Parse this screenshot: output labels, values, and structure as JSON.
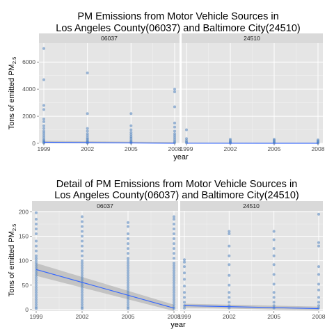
{
  "chart_data": [
    {
      "type": "scatter",
      "title_lines": [
        "PM Emissions from Motor Vehicle Sources in",
        "Los Angeles County(06037) and Baltimore City(24510)"
      ],
      "xlabel": "year",
      "ylabel_main": "Tons of emitted PM",
      "ylabel_sub": "2.5",
      "x_ticks": [
        1999,
        2002,
        2005,
        2008
      ],
      "y_ticks": [
        0,
        2000,
        4000,
        6000
      ],
      "xlim": [
        1999,
        2008
      ],
      "ylim": [
        0,
        7400
      ],
      "point_color": "#4f81bd",
      "trend_color": "#3366ff",
      "facets": [
        {
          "label": "06037",
          "points": {
            "1999": [
              7000,
              4700,
              2800,
              2500,
              1800,
              1600,
              1300,
              1100,
              900,
              750,
              600,
              450,
              300,
              200,
              120,
              60,
              20
            ],
            "2002": [
              5200,
              2200,
              1100,
              900,
              700,
              550,
              400,
              300,
              200,
              120,
              60,
              20
            ],
            "2005": [
              2200,
              1300,
              1000,
              800,
              650,
              500,
              380,
              250,
              150,
              80,
              20
            ],
            "2008": [
              4000,
              3800,
              2700,
              1500,
              1200,
              900,
              700,
              550,
              400,
              250,
              120,
              40
            ]
          },
          "trend": [
            [
              1999,
              80
            ],
            [
              2008,
              5
            ]
          ],
          "band": [
            [
              1999,
              180,
              -20
            ],
            [
              2008,
              90,
              -80
            ]
          ]
        },
        {
          "label": "24510",
          "points": {
            "1999": [
              1000,
              350,
              200,
              100,
              30
            ],
            "2002": [
              300,
              200,
              120,
              50,
              15
            ],
            "2005": [
              300,
              220,
              140,
              60,
              15
            ],
            "2008": [
              260,
              180,
              100,
              40,
              10
            ]
          },
          "trend": [
            [
              1999,
              10
            ],
            [
              2008,
              5
            ]
          ],
          "band": [
            [
              1999,
              60,
              -40
            ],
            [
              2008,
              50,
              -40
            ]
          ]
        }
      ]
    },
    {
      "type": "scatter",
      "title_lines": [
        "Detail of PM Emissions from Motor Vehicle Sources in",
        "Los Angeles County(06037) and Baltimore City(24510)"
      ],
      "xlabel": "year",
      "ylabel_main": "Tons of emitted PM",
      "ylabel_sub": "2.5",
      "x_ticks": [
        1999,
        2002,
        2005,
        2008
      ],
      "y_ticks": [
        0,
        50,
        100,
        150,
        200
      ],
      "xlim": [
        1999,
        2008
      ],
      "ylim": [
        0,
        200
      ],
      "point_color": "#4f81bd",
      "trend_color": "#3366ff",
      "facets": [
        {
          "label": "06037",
          "points": {
            "1999": [
              198,
              185,
              175,
              165,
              155,
              140,
              130,
              120,
              110,
              105,
              100,
              95,
              90,
              85,
              80,
              75,
              70,
              65,
              60,
              55,
              50,
              45,
              40,
              35,
              30,
              25,
              20,
              15,
              10,
              5,
              2
            ],
            "2002": [
              190,
              180,
              170,
              160,
              150,
              140,
              130,
              120,
              110,
              100,
              95,
              90,
              85,
              80,
              75,
              70,
              65,
              60,
              55,
              50,
              45,
              40,
              35,
              30,
              25,
              20,
              15,
              10,
              5,
              2
            ],
            "2005": [
              178,
              170,
              155,
              145,
              135,
              125,
              115,
              105,
              100,
              95,
              90,
              85,
              80,
              75,
              70,
              65,
              60,
              55,
              50,
              45,
              40,
              35,
              30,
              25,
              20,
              15,
              10,
              5,
              2
            ],
            "2008": [
              190,
              185,
              175,
              165,
              155,
              145,
              135,
              125,
              115,
              105,
              95,
              90,
              85,
              80,
              75,
              70,
              65,
              60,
              55,
              50,
              45,
              40,
              35,
              30,
              25,
              20,
              15,
              10,
              5,
              2
            ]
          },
          "trend": [
            [
              1999,
              82
            ],
            [
              2008,
              3
            ]
          ],
          "band": [
            [
              1999,
              95,
              69
            ],
            [
              2008,
              10,
              -4
            ]
          ]
        },
        {
          "label": "24510",
          "points": {
            "1999": [
              102,
              97,
              88,
              75,
              62,
              48,
              35,
              25,
              15,
              8,
              3
            ],
            "2002": [
              160,
              155,
              130,
              110,
              92,
              70,
              50,
              35,
              25,
              15,
              8,
              3
            ],
            "2005": [
              160,
              143,
              125,
              110,
              92,
              72,
              52,
              35,
              25,
              15,
              8,
              3
            ],
            "2008": [
              195,
              137,
              130,
              88,
              72,
              52,
              40,
              25,
              15,
              8,
              3
            ]
          },
          "trend": [
            [
              1999,
              8
            ],
            [
              2008,
              2
            ]
          ],
          "band": [
            [
              1999,
              12,
              4
            ],
            [
              2008,
              6,
              -2
            ]
          ]
        }
      ]
    }
  ]
}
